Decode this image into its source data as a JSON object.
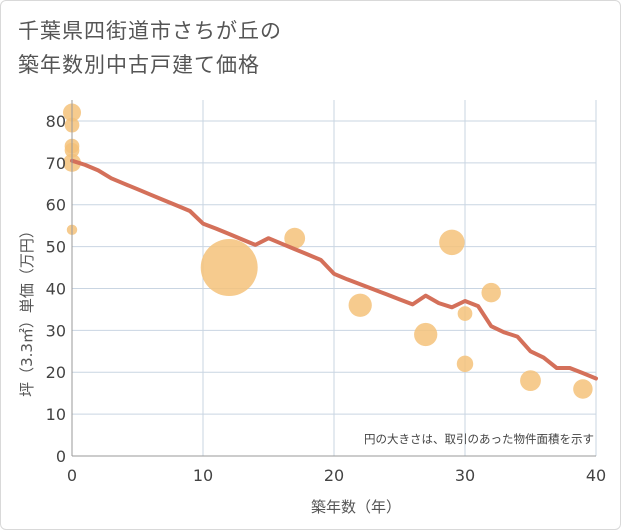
{
  "chart_data": {
    "type": "scatter",
    "title_lines": [
      "千葉県四街道市さちが丘の",
      "築年数別中古戸建て価格"
    ],
    "xlabel": "築年数（年）",
    "ylabel": "坪（3.3㎡）単価（万円）",
    "xlim": [
      0,
      40
    ],
    "ylim": [
      0,
      85
    ],
    "xticks": [
      0,
      10,
      20,
      30,
      40
    ],
    "yticks": [
      0,
      10,
      20,
      30,
      40,
      50,
      60,
      70,
      80
    ],
    "grid": true,
    "annotation": "円の大きさは、取引のあった物件面積を示す",
    "colors": {
      "bubble": "#f5c27a",
      "trend": "#d4705a",
      "grid": "#c9d5e2"
    },
    "bubbles": [
      {
        "x": 0,
        "y": 82,
        "size": 3
      },
      {
        "x": 0,
        "y": 79,
        "size": 2
      },
      {
        "x": 0,
        "y": 74,
        "size": 2
      },
      {
        "x": 0,
        "y": 73,
        "size": 2
      },
      {
        "x": 0,
        "y": 70,
        "size": 3
      },
      {
        "x": 0,
        "y": 54,
        "size": 1
      },
      {
        "x": 12,
        "y": 45,
        "size": 30
      },
      {
        "x": 17,
        "y": 52,
        "size": 4
      },
      {
        "x": 22,
        "y": 36,
        "size": 5
      },
      {
        "x": 27,
        "y": 29,
        "size": 5
      },
      {
        "x": 29,
        "y": 51,
        "size": 6
      },
      {
        "x": 30,
        "y": 34,
        "size": 2
      },
      {
        "x": 30,
        "y": 22,
        "size": 2.5
      },
      {
        "x": 32,
        "y": 39,
        "size": 3.5
      },
      {
        "x": 35,
        "y": 18,
        "size": 4
      },
      {
        "x": 39,
        "y": 16,
        "size": 3.5
      }
    ],
    "trend": {
      "x": [
        0,
        1,
        2,
        3,
        4,
        5,
        6,
        7,
        8,
        9,
        10,
        11,
        12,
        13,
        14,
        15,
        16,
        17,
        18,
        19,
        20,
        21,
        22,
        23,
        24,
        25,
        26,
        27,
        28,
        29,
        30,
        31,
        32,
        33,
        34,
        35,
        36,
        37,
        38,
        39,
        40
      ],
      "y": [
        70.5,
        69.5,
        68.2,
        66.3,
        65,
        63.7,
        62.4,
        61.1,
        59.8,
        58.5,
        55.5,
        54.3,
        53,
        51.7,
        50.4,
        52,
        50.7,
        49.4,
        48.1,
        46.8,
        43.5,
        42.2,
        41,
        39.8,
        38.6,
        37.4,
        36.2,
        38.3,
        36.5,
        35.5,
        37,
        35.8,
        31,
        29.5,
        28.5,
        25,
        23.5,
        21,
        21,
        19.8,
        18.5
      ]
    }
  }
}
